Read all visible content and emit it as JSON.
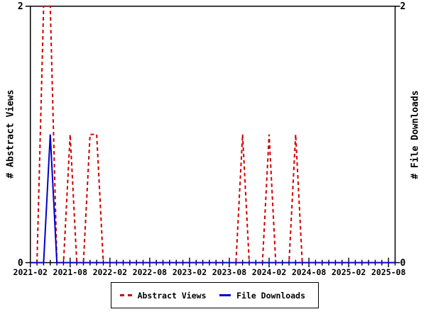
{
  "chart_data": {
    "type": "line",
    "title": "",
    "xlabel": "",
    "ylabel_left": "# Abstract Views",
    "ylabel_right": "# File Downloads",
    "x_unit": "month",
    "x_domain": [
      "2021-02",
      "2025-09"
    ],
    "x_major_tick_labels": [
      "2021-02",
      "2021-08",
      "2022-02",
      "2022-08",
      "2023-02",
      "2023-08",
      "2024-02",
      "2024-08",
      "2025-02",
      "2025-08"
    ],
    "x_major_tick_every_months": 6,
    "x_minor_tick_every_months": 1,
    "ylim": [
      0,
      2
    ],
    "y_ticks": [
      {
        "value": 0,
        "label": "0"
      },
      {
        "value": 2,
        "label": "2"
      }
    ],
    "grid": false,
    "legend_position": "bottom",
    "axis_color": "#000000",
    "background_color": "#ffffff",
    "series": [
      {
        "name": "Abstract Views",
        "axis": "left",
        "color": "#cc0000",
        "line_style": "dashed",
        "monthly_nonzero": {
          "2021-04": 2,
          "2021-05": 2,
          "2021-08": 1,
          "2021-11": 1,
          "2021-12": 1,
          "2023-10": 1,
          "2024-02": 1,
          "2024-06": 1
        },
        "all_other_months_value": 0
      },
      {
        "name": "File Downloads",
        "axis": "right",
        "color": "#0000cc",
        "line_style": "solid",
        "monthly_nonzero": {
          "2021-05": 1
        },
        "all_other_months_value": 0
      }
    ]
  }
}
